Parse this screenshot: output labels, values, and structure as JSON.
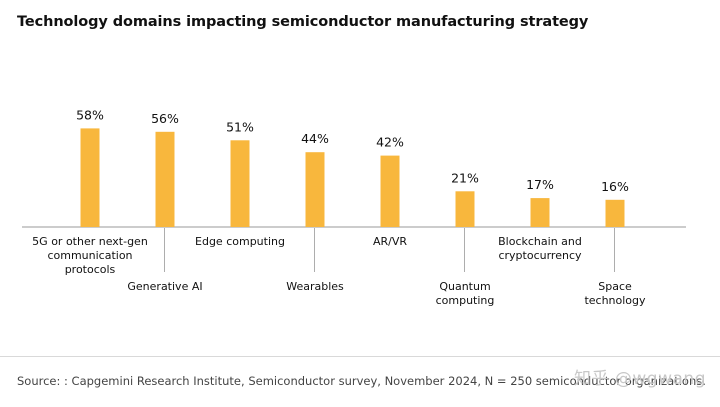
{
  "title": "Technology domains impacting semiconductor manufacturing strategy",
  "source": "Source: : Capgemini Research Institute, Semiconductor survey, November 2024, N = 250 semiconductor organizations.",
  "watermark": "知乎 @wgwang",
  "colors": {
    "bar": "#F8B73D",
    "axis": "#999999",
    "text": "#111111",
    "source": "#444444"
  },
  "chart_data": {
    "type": "bar",
    "title": "Technology domains impacting semiconductor manufacturing strategy",
    "categories": [
      [
        "5G or other next-gen",
        "communication",
        "protocols"
      ],
      [
        "Generative AI"
      ],
      [
        "Edge computing"
      ],
      [
        "Wearables"
      ],
      [
        "AR/VR"
      ],
      [
        "Quantum",
        "computing"
      ],
      [
        "Blockchain and",
        "cryptocurrency"
      ],
      [
        "Space",
        "technology"
      ]
    ],
    "label_position": [
      "above",
      "below",
      "above",
      "below",
      "above",
      "below",
      "above",
      "below"
    ],
    "values": [
      58,
      56,
      51,
      44,
      42,
      21,
      17,
      16
    ],
    "data_labels": [
      "58%",
      "56%",
      "51%",
      "44%",
      "42%",
      "21%",
      "17%",
      "16%"
    ],
    "xlabel": "",
    "ylabel": "",
    "ylim": [
      0,
      100
    ],
    "grid": false,
    "legend": "none"
  }
}
